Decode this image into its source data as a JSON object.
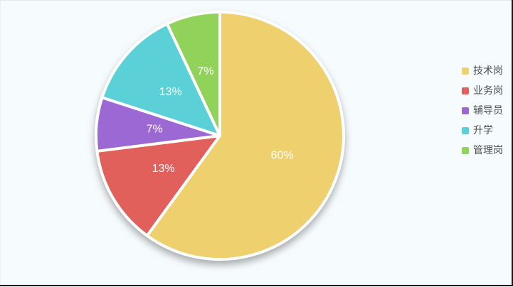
{
  "panel": {
    "background_color": "#f6fbfe",
    "frame_dark_edge_color": "#16161e",
    "frame_light_edge_color": "#e2e9ee"
  },
  "chart_data": {
    "type": "pie",
    "title": "",
    "categories": [
      "技术岗",
      "业务岗",
      "辅导员",
      "升学",
      "管理岗"
    ],
    "values": [
      60,
      13,
      7,
      13,
      7
    ],
    "labels": [
      "60%",
      "13%",
      "7%",
      "13%",
      "7%"
    ],
    "colors": [
      "#eed06f",
      "#e2605c",
      "#9c68d3",
      "#5bd0d6",
      "#91d35a"
    ],
    "label_color": "#ffffff",
    "slice_border_color": "#ffffff",
    "legend_position": "right",
    "start_angle_deg": 0,
    "direction": "clockwise",
    "grid": false
  },
  "legend": {
    "items": [
      {
        "label": "技术岗",
        "color": "#eed06f"
      },
      {
        "label": "业务岗",
        "color": "#e2605c"
      },
      {
        "label": "辅导员",
        "color": "#9c68d3"
      },
      {
        "label": "升学",
        "color": "#5bd0d6"
      },
      {
        "label": "管理岗",
        "color": "#91d35a"
      }
    ]
  }
}
